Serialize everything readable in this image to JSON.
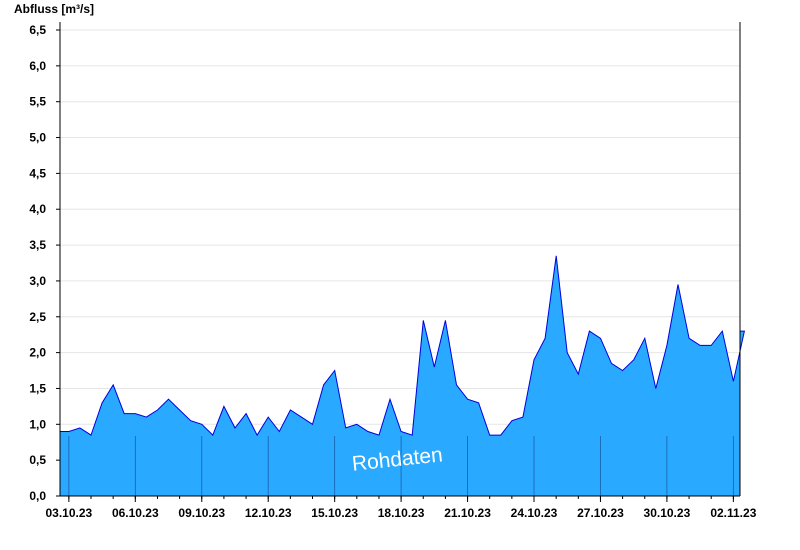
{
  "chart_data": {
    "type": "area",
    "ylabel": "Abfluss [m³/s]",
    "ylim": [
      0,
      6.5
    ],
    "y_ticks": [
      "0,0",
      "0,5",
      "1,0",
      "1,5",
      "2,0",
      "2,5",
      "3,0",
      "3,5",
      "4,0",
      "4,5",
      "5,0",
      "5,5",
      "6,0",
      "6,5"
    ],
    "x_ticks": [
      "03.10.23",
      "06.10.23",
      "09.10.23",
      "12.10.23",
      "15.10.23",
      "18.10.23",
      "21.10.23",
      "24.10.23",
      "27.10.23",
      "30.10.23",
      "02.11.23"
    ],
    "watermark": "Rohdaten",
    "grid": true,
    "colors": {
      "fill": "#29a9ff",
      "line": "#0000dd",
      "grid": "#e6e6e6",
      "axis": "#000000"
    },
    "series": [
      {
        "x": [
          "03.10.23 00:00",
          "03.10.23 12:00",
          "04.10.23 00:00",
          "04.10.23 12:00",
          "05.10.23 00:00",
          "05.10.23 12:00",
          "06.10.23 00:00",
          "06.10.23 12:00",
          "07.10.23 00:00",
          "07.10.23 12:00",
          "08.10.23 00:00",
          "08.10.23 12:00",
          "09.10.23 00:00",
          "09.10.23 12:00",
          "10.10.23 00:00",
          "10.10.23 12:00",
          "11.10.23 00:00",
          "11.10.23 12:00",
          "12.10.23 00:00",
          "12.10.23 12:00",
          "13.10.23 00:00",
          "13.10.23 12:00",
          "14.10.23 00:00",
          "14.10.23 12:00",
          "15.10.23 00:00",
          "15.10.23 12:00",
          "16.10.23 00:00",
          "16.10.23 12:00",
          "17.10.23 00:00",
          "17.10.23 12:00",
          "18.10.23 00:00",
          "18.10.23 12:00",
          "19.10.23 00:00",
          "19.10.23 12:00",
          "20.10.23 00:00",
          "20.10.23 12:00",
          "21.10.23 00:00",
          "21.10.23 12:00",
          "22.10.23 00:00",
          "22.10.23 12:00",
          "23.10.23 00:00",
          "23.10.23 12:00",
          "24.10.23 00:00",
          "24.10.23 12:00",
          "25.10.23 00:00",
          "25.10.23 12:00",
          "26.10.23 00:00",
          "26.10.23 12:00",
          "27.10.23 00:00",
          "27.10.23 12:00",
          "28.10.23 00:00",
          "28.10.23 12:00",
          "29.10.23 00:00",
          "29.10.23 12:00",
          "30.10.23 00:00",
          "30.10.23 12:00",
          "31.10.23 00:00",
          "31.10.23 12:00",
          "01.11.23 00:00",
          "01.11.23 12:00",
          "02.11.23 00:00",
          "02.11.23 12:00"
        ],
        "values": [
          0.9,
          0.95,
          0.85,
          1.3,
          1.55,
          1.15,
          1.15,
          1.1,
          1.2,
          1.35,
          1.2,
          1.05,
          1.0,
          0.85,
          1.25,
          0.95,
          1.15,
          0.85,
          1.1,
          0.9,
          1.2,
          1.1,
          1.0,
          1.55,
          1.75,
          0.95,
          1.0,
          0.9,
          0.85,
          1.35,
          0.9,
          0.85,
          2.45,
          1.8,
          2.45,
          1.55,
          1.35,
          1.3,
          0.85,
          0.85,
          1.05,
          1.1,
          1.9,
          2.2,
          3.35,
          2.0,
          1.7,
          2.3,
          2.2,
          1.85,
          1.75,
          1.9,
          2.2,
          1.5,
          2.1,
          2.95,
          2.2,
          2.1,
          2.1,
          2.3,
          1.6,
          2.3
        ]
      }
    ]
  }
}
